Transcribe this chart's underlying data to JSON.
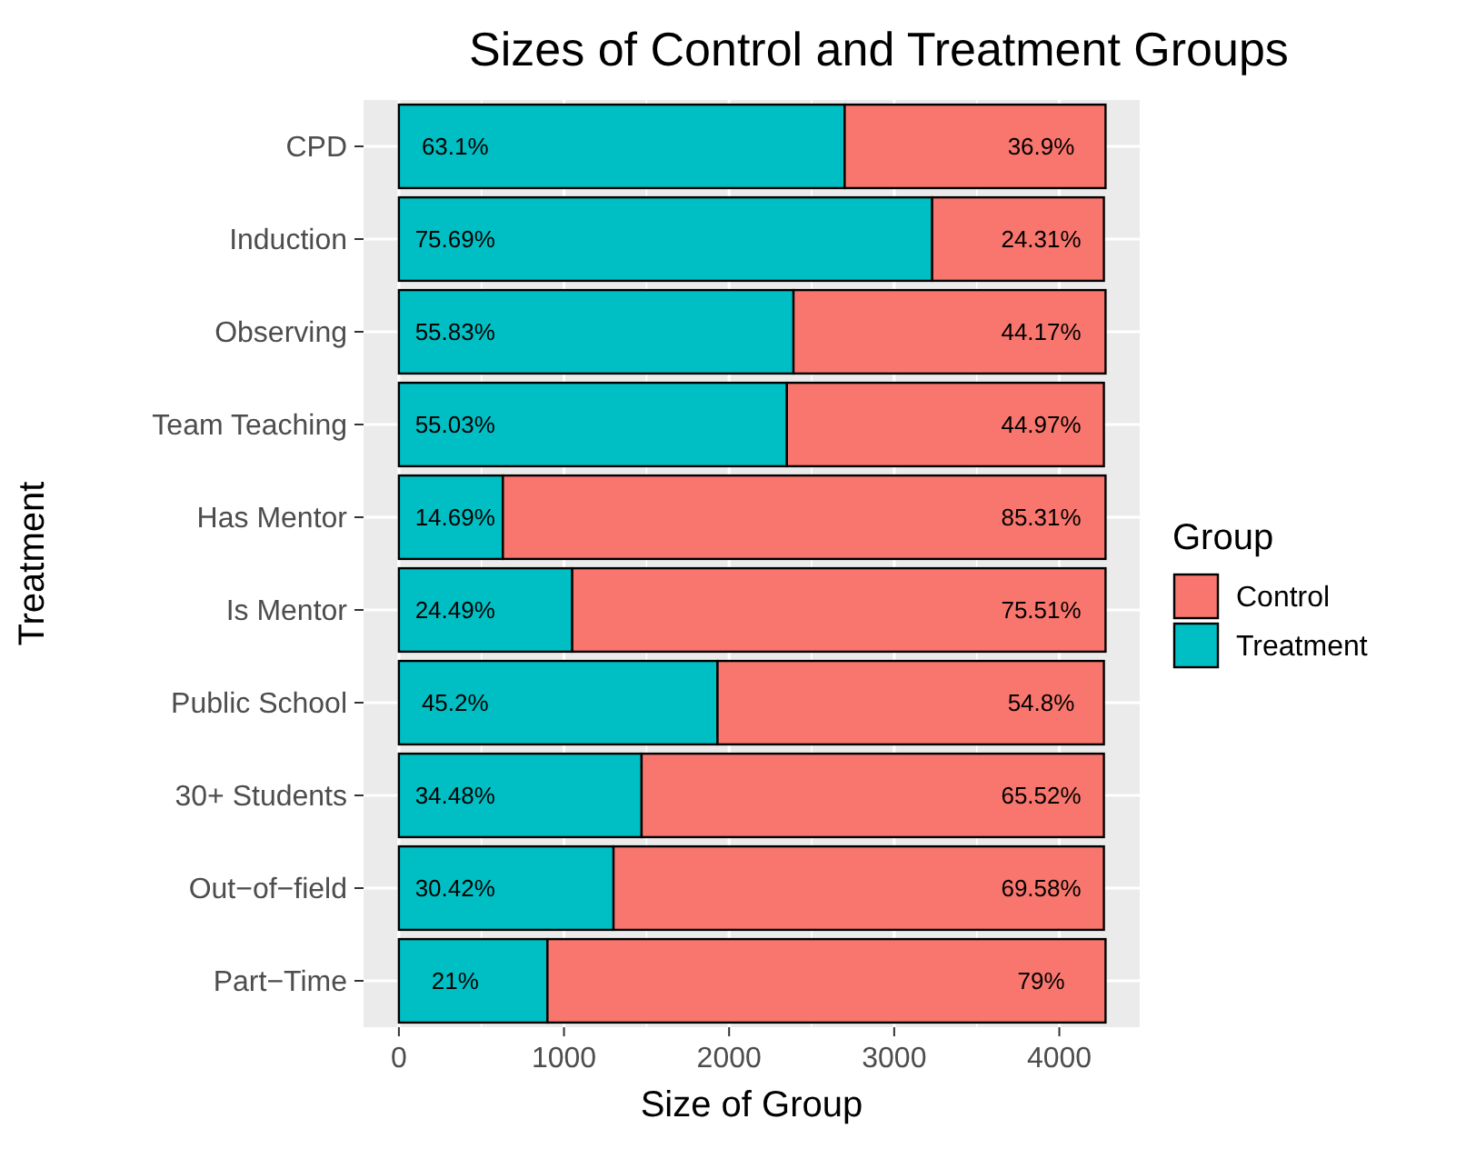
{
  "chart_data": {
    "type": "bar",
    "orientation": "horizontal",
    "stacked": true,
    "title": "Sizes of Control and Treatment Groups",
    "xlabel": "Size of Group",
    "ylabel": "Treatment",
    "legend_title": "Group",
    "categories": [
      "CPD",
      "Induction",
      "Observing",
      "Team Teaching",
      "Has Mentor",
      "Is Mentor",
      "Public School",
      "30+ Students",
      "Out−of−field",
      "Part−Time"
    ],
    "series": [
      {
        "name": "Treatment",
        "color": "#00bfc4",
        "values": [
          2700,
          3230,
          2390,
          2350,
          630,
          1050,
          1930,
          1470,
          1300,
          900
        ]
      },
      {
        "name": "Control",
        "color": "#f8766d",
        "values": [
          1580,
          1040,
          1890,
          1920,
          3650,
          3230,
          2340,
          2800,
          2970,
          3380
        ]
      }
    ],
    "annotations": [
      {
        "text": "63.1%",
        "y": "CPD"
      },
      {
        "text": "75.69%",
        "y": "Induction"
      },
      {
        "text": "55.83%",
        "y": "Observing"
      },
      {
        "text": "55.03%",
        "y": "Team Teaching"
      },
      {
        "text": "14.69%",
        "y": "Has Mentor"
      },
      {
        "text": "24.49%",
        "y": "Is Mentor"
      },
      {
        "text": "45.2%",
        "y": "Public School"
      },
      {
        "text": "34.48%",
        "y": "30+ Students"
      },
      {
        "text": "30.42%",
        "y": "Out−of−field"
      },
      {
        "text": "21%",
        "y": "Part−Time"
      },
      {
        "text": "36.9%",
        "y": "CPD"
      },
      {
        "text": "24.31%",
        "y": "Induction"
      },
      {
        "text": "44.17%",
        "y": "Observing"
      },
      {
        "text": "44.97%",
        "y": "Team Teaching"
      },
      {
        "text": "85.31%",
        "y": "Has Mentor"
      },
      {
        "text": "75.51%",
        "y": "Is Mentor"
      },
      {
        "text": "54.8%",
        "y": "Public School"
      },
      {
        "text": "65.52%",
        "y": "30+ Students"
      },
      {
        "text": "69.58%",
        "y": "Out−of−field"
      },
      {
        "text": "79%",
        "y": "Part−Time"
      }
    ],
    "xlim": [
      -214,
      4487
    ],
    "xticks": [
      0,
      1000,
      2000,
      3000,
      4000
    ],
    "grid": true,
    "legend": "right"
  }
}
